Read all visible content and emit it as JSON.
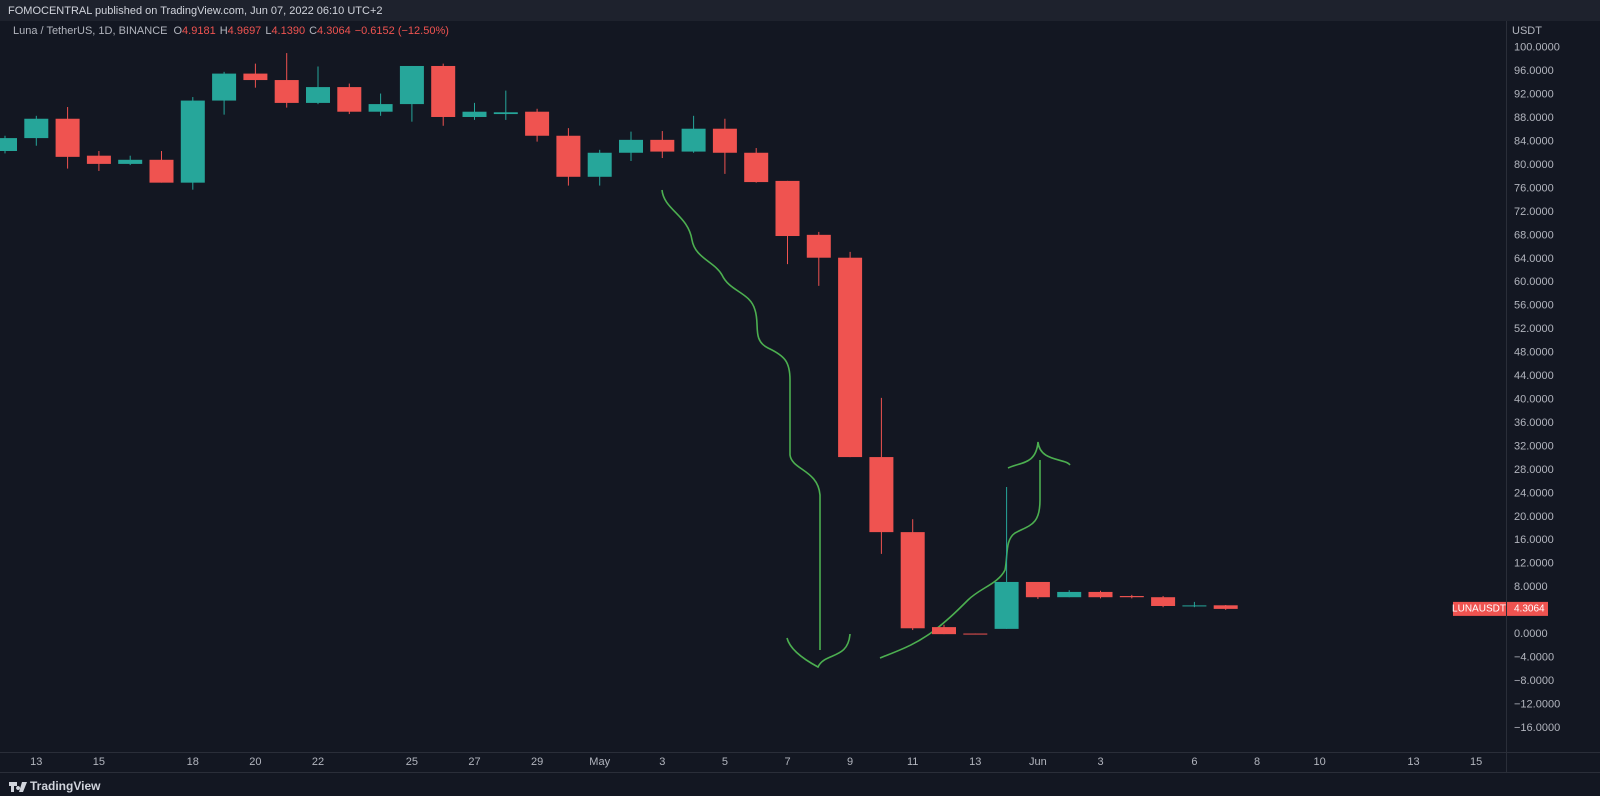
{
  "header": {
    "publisher": "FOMOCENTRAL published on TradingView.com, Jun 07, 2022 06:10 UTC+2"
  },
  "footer": {
    "brand": "TradingView"
  },
  "chart_data": {
    "type": "candlestick",
    "symbol": "Luna / TetherUS, 1D, BINANCE",
    "legend": {
      "o_label": "O",
      "open": "4.9181",
      "h_label": "H",
      "high": "4.9697",
      "l_label": "L",
      "low": "4.1390",
      "c_label": "C",
      "close": "4.3064",
      "change": "−0.6152 (−12.50%)"
    },
    "y_unit": "USDT",
    "price_tag": {
      "ticker": "LUNAUSDT",
      "value": "4.3064"
    },
    "up_color": "#26a69a",
    "down_color": "#ef5350",
    "grid": false,
    "categories": [
      null,
      "13",
      null,
      "15",
      null,
      null,
      "18",
      null,
      "20",
      null,
      "22",
      null,
      null,
      "25",
      null,
      "27",
      null,
      "29",
      null,
      "May",
      null,
      "3",
      null,
      "5",
      null,
      "7",
      null,
      "9",
      null,
      "11",
      null,
      "13",
      null,
      "Jun",
      null,
      "3",
      null,
      null,
      "6",
      null,
      "8",
      null,
      "10",
      null,
      null,
      "13",
      null,
      "15"
    ],
    "open": [
      82.4,
      84.6,
      87.9,
      81.6,
      80.2,
      80.9,
      77.0,
      91.0,
      95.6,
      94.5,
      90.6,
      93.3,
      89.1,
      90.4,
      96.9,
      88.2,
      88.7,
      89.1,
      85.0,
      78.0,
      82.1,
      84.3,
      82.3,
      86.2,
      82.1,
      77.3,
      68.1,
      64.2,
      30.2,
      17.4,
      1.2,
      0.1,
      0.9,
      8.9,
      6.3,
      7.2,
      6.5,
      6.3,
      4.8,
      4.9181,
      null,
      null,
      null,
      null,
      null,
      null,
      null,
      null
    ],
    "high": [
      85.0,
      88.4,
      89.9,
      82.4,
      81.6,
      82.4,
      91.6,
      95.9,
      97.3,
      99.1,
      96.8,
      93.9,
      92.2,
      96.9,
      97.3,
      90.6,
      92.7,
      89.6,
      86.3,
      82.6,
      85.7,
      85.8,
      88.4,
      87.9,
      82.9,
      77.3,
      68.6,
      65.2,
      40.3,
      19.6,
      1.6,
      0.1,
      25.1,
      8.9,
      7.5,
      7.4,
      6.7,
      6.5,
      5.5,
      4.9697,
      null,
      null,
      null,
      null,
      null,
      null,
      null,
      null
    ],
    "low": [
      82.0,
      83.3,
      79.4,
      79.0,
      80.0,
      77.0,
      75.8,
      88.6,
      93.2,
      89.8,
      90.4,
      88.7,
      88.4,
      87.4,
      86.7,
      87.7,
      87.7,
      84.0,
      76.5,
      76.5,
      80.7,
      81.2,
      82.1,
      78.5,
      77.0,
      63.1,
      59.4,
      30.2,
      13.7,
      0.7,
      0.0,
      0.0,
      0.9,
      6.0,
      6.3,
      6.1,
      6.1,
      4.6,
      4.6,
      4.139,
      null,
      null,
      null,
      null,
      null,
      null,
      null,
      null
    ],
    "close": [
      84.6,
      87.9,
      81.4,
      80.2,
      80.9,
      77.0,
      91.0,
      95.6,
      94.5,
      90.6,
      93.3,
      89.1,
      90.4,
      96.9,
      88.2,
      89.1,
      89.0,
      85.0,
      78.0,
      82.1,
      84.3,
      82.3,
      86.2,
      82.1,
      77.1,
      67.9,
      64.2,
      30.2,
      17.4,
      1.0,
      0.0,
      0.0,
      8.9,
      6.3,
      7.2,
      6.3,
      6.3,
      4.8,
      4.9,
      4.3064,
      null,
      null,
      null,
      null,
      null,
      null,
      null,
      null
    ],
    "ylim": [
      -20.1,
      104.4
    ],
    "yticks": [
      {
        "value": -16,
        "label": "−16.0000"
      },
      {
        "value": -12,
        "label": "−12.0000"
      },
      {
        "value": -8,
        "label": "−8.0000"
      },
      {
        "value": -4,
        "label": "−4.0000"
      },
      {
        "value": 0,
        "label": "0.0000"
      },
      {
        "value": 4,
        "label": "4.0000"
      },
      {
        "value": 8,
        "label": "8.0000"
      },
      {
        "value": 12,
        "label": "12.0000"
      },
      {
        "value": 16,
        "label": "16.0000"
      },
      {
        "value": 20,
        "label": "20.0000"
      },
      {
        "value": 24,
        "label": "24.0000"
      },
      {
        "value": 28,
        "label": "28.0000"
      },
      {
        "value": 32,
        "label": "32.0000"
      },
      {
        "value": 36,
        "label": "36.0000"
      },
      {
        "value": 40,
        "label": "40.0000"
      },
      {
        "value": 44,
        "label": "44.0000"
      },
      {
        "value": 48,
        "label": "48.0000"
      },
      {
        "value": 52,
        "label": "52.0000"
      },
      {
        "value": 56,
        "label": "56.0000"
      },
      {
        "value": 60,
        "label": "60.0000"
      },
      {
        "value": 64,
        "label": "64.0000"
      },
      {
        "value": 68,
        "label": "68.0000"
      },
      {
        "value": 72,
        "label": "72.0000"
      },
      {
        "value": 76,
        "label": "76.0000"
      },
      {
        "value": 80,
        "label": "80.0000"
      },
      {
        "value": 84,
        "label": "84.0000"
      },
      {
        "value": 88,
        "label": "88.0000"
      },
      {
        "value": 92,
        "label": "92.0000"
      },
      {
        "value": 96,
        "label": "96.0000"
      },
      {
        "value": 100,
        "label": "100.0000"
      }
    ]
  }
}
